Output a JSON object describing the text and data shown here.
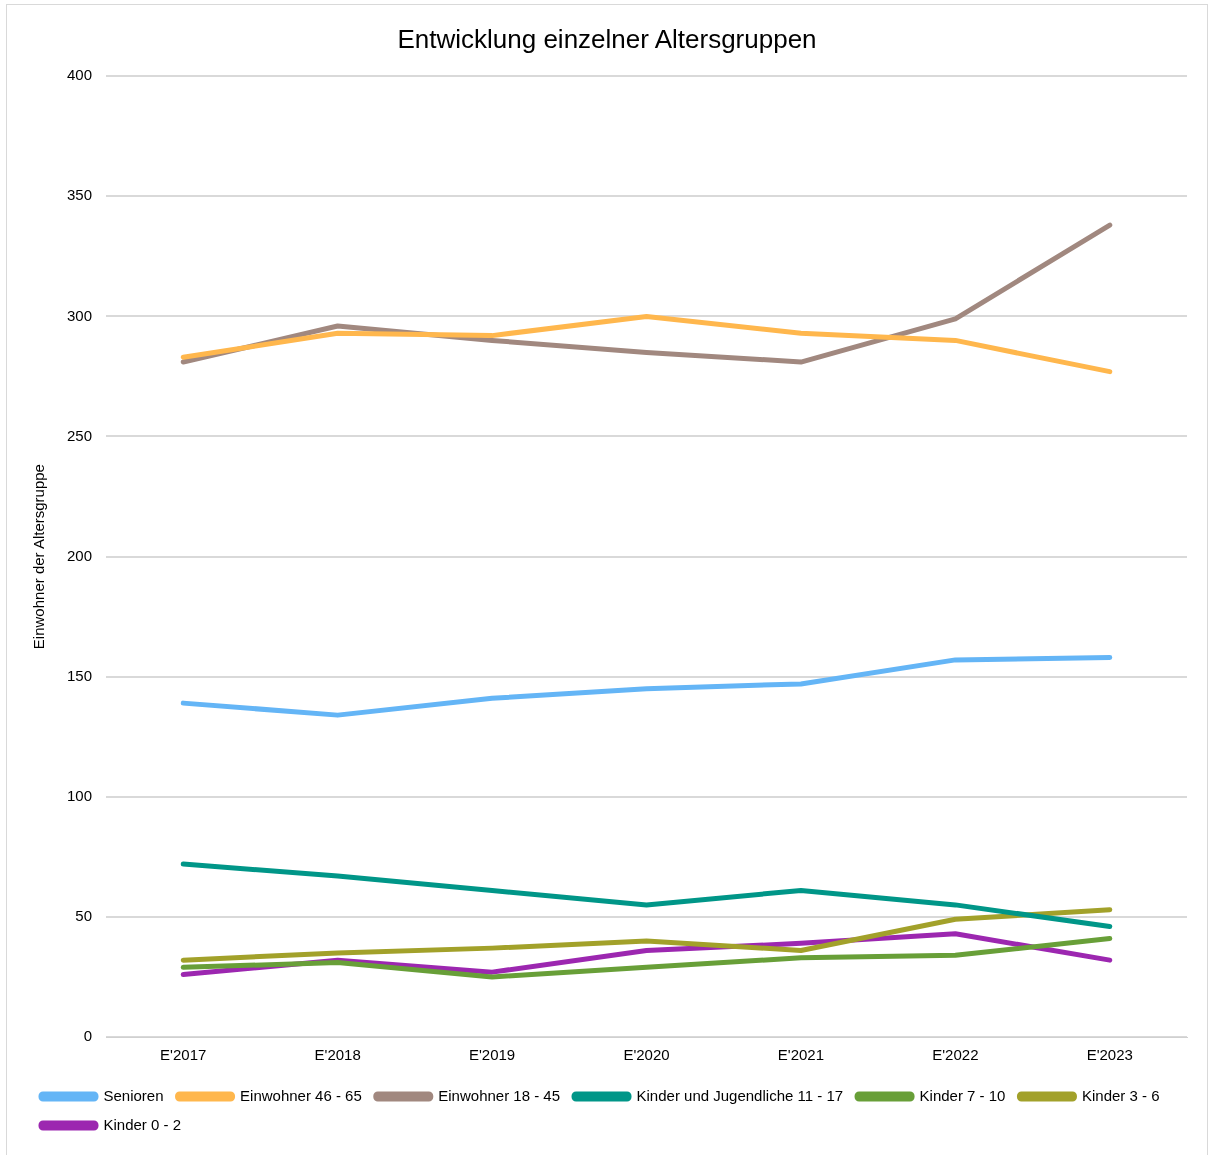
{
  "chart_data": {
    "type": "line",
    "title": "Entwicklung einzelner Altersgruppen",
    "ylabel": "Einwohner der Altersgruppe",
    "categories": [
      "E'2017",
      "E'2018",
      "E'2019",
      "E'2020",
      "E'2021",
      "E'2022",
      "E'2023"
    ],
    "ylim": [
      0,
      400
    ],
    "yticks": [
      0,
      50,
      100,
      150,
      200,
      250,
      300,
      350,
      400
    ],
    "grid": "y",
    "legend": "bottom",
    "marker": "none",
    "line_style": "solid",
    "series": [
      {
        "name": "Senioren",
        "color": "#64b5f6",
        "values": [
          139,
          134,
          141,
          145,
          147,
          157,
          158
        ]
      },
      {
        "name": "Einwohner 46 - 65",
        "color": "#ffb74d",
        "values": [
          283,
          293,
          292,
          300,
          293,
          290,
          277
        ]
      },
      {
        "name": "Einwohner 18 - 45",
        "color": "#a1887f",
        "values": [
          281,
          296,
          290,
          285,
          281,
          299,
          338
        ]
      },
      {
        "name": "Kinder und Jugendliche 11 - 17",
        "color": "#009688",
        "values": [
          72,
          67,
          61,
          55,
          61,
          55,
          46
        ]
      },
      {
        "name": "Kinder 7 - 10",
        "color": "#689f38",
        "values": [
          29,
          31,
          25,
          29,
          33,
          34,
          41
        ]
      },
      {
        "name": "Kinder 3 - 6",
        "color": "#a2a12a",
        "values": [
          32,
          35,
          37,
          40,
          36,
          49,
          53
        ]
      },
      {
        "name": "Kinder 0 - 2",
        "color": "#9c27b0",
        "values": [
          26,
          32,
          27,
          36,
          39,
          43,
          32
        ]
      }
    ]
  }
}
